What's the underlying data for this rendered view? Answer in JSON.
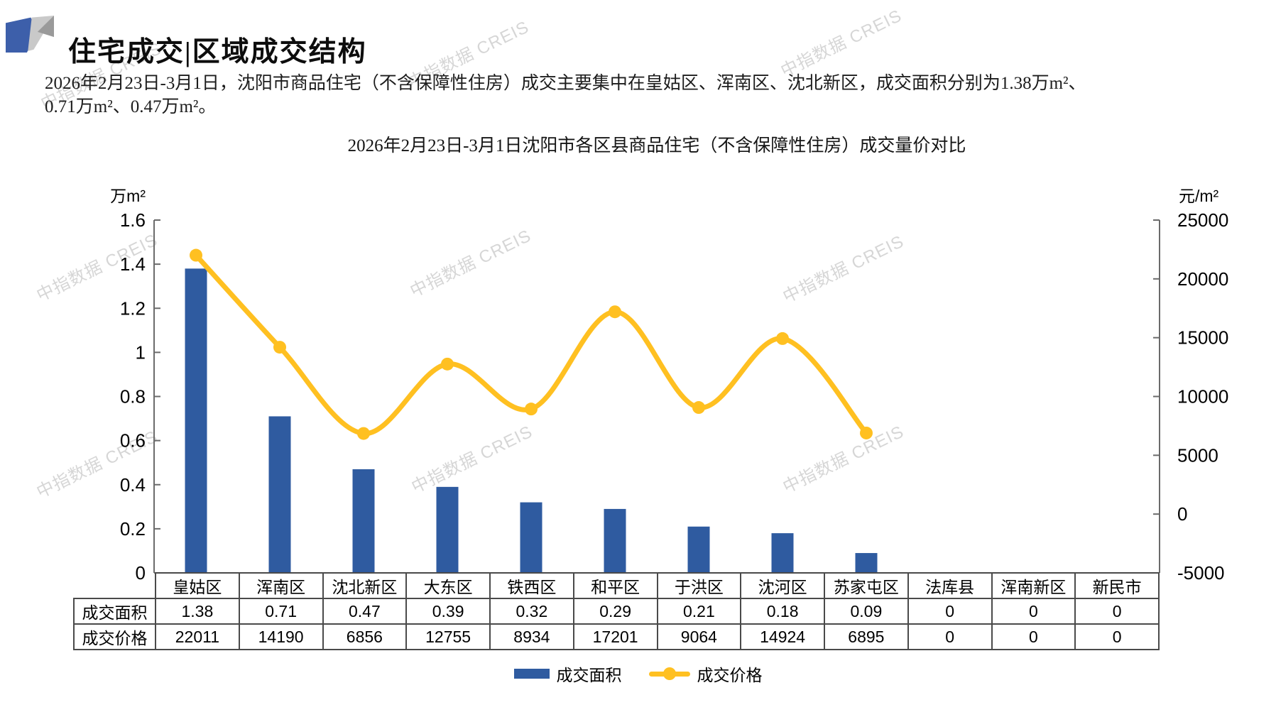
{
  "header": {
    "title": "住宅成交|区域成交结构"
  },
  "summary": {
    "line1": "2026年2月23日-3月1日，沈阳市商品住宅（不含保障性住房）成交主要集中在皇姑区、浑南区、沈北新区，成交面积分别为1.38万m²、",
    "line2": "0.71万m²、0.47万m²。"
  },
  "watermark": {
    "text": "中指数据 CREIS"
  },
  "colors": {
    "bar": "#2F5BA0",
    "line": "#FFC021",
    "axis": "#6b6b6b",
    "table_border": "#4a4a4a",
    "logo_blue": "#3D5FAA",
    "logo_gray_light": "#C9C9C9",
    "logo_gray_dark": "#9A9A9A"
  },
  "chart_data": {
    "type": "bar+line-combo",
    "title": "2026年2月23日-3月1日沈阳市各区县商品住宅（不含保障性住房）成交量价对比",
    "categories": [
      "皇姑区",
      "浑南区",
      "沈北新区",
      "大东区",
      "铁西区",
      "和平区",
      "于洪区",
      "沈河区",
      "苏家屯区",
      "法库县",
      "浑南新区",
      "新民市"
    ],
    "series": [
      {
        "name": "成交面积",
        "type": "bar",
        "axis": "left",
        "values": [
          1.38,
          0.71,
          0.47,
          0.39,
          0.32,
          0.29,
          0.21,
          0.18,
          0.09,
          0,
          0,
          0
        ]
      },
      {
        "name": "成交价格",
        "type": "line",
        "axis": "right",
        "values": [
          22011,
          14190,
          6856,
          12755,
          8934,
          17201,
          9064,
          14924,
          6895,
          0,
          0,
          0
        ]
      }
    ],
    "left_axis": {
      "unit": "万m²",
      "min": 0,
      "max": 1.6,
      "step": 0.2
    },
    "right_axis": {
      "unit": "元/m²",
      "min": -5000,
      "max": 25000,
      "step": 5000
    },
    "grid": false,
    "legend_position": "bottom",
    "note": "line omits zero-value categories"
  }
}
